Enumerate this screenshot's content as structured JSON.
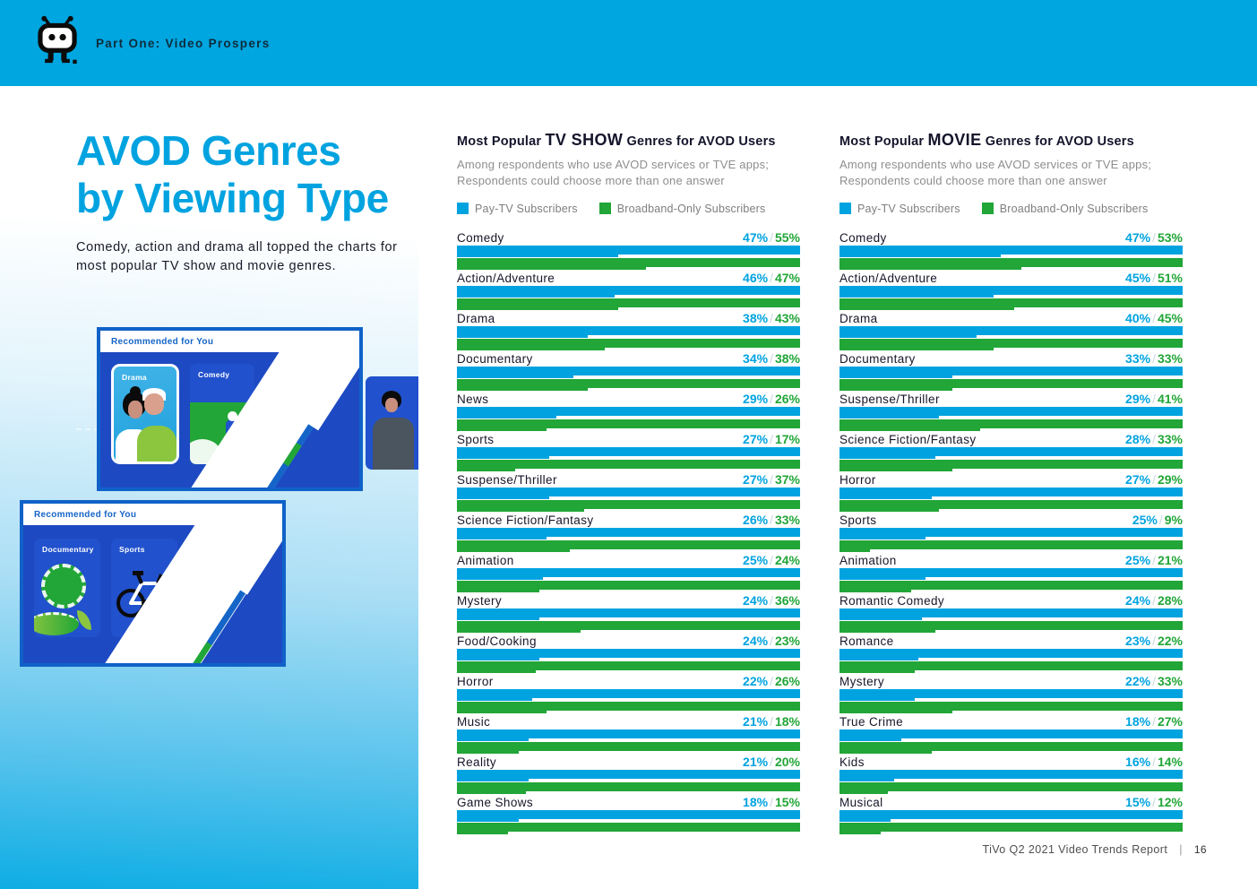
{
  "header": {
    "section_label": "Part One: Video Prospers"
  },
  "sidebar": {
    "title_lines": [
      "AVOD Genres",
      "by Viewing Type"
    ],
    "description": "Comedy, action and drama all topped the charts for most popular TV show and movie genres.",
    "panels": [
      {
        "header": "Recommended for You",
        "cards": [
          "Drama",
          "Comedy"
        ]
      },
      {
        "header": "Recommended for You",
        "cards": [
          "Documentary",
          "Sports"
        ]
      }
    ]
  },
  "footer": {
    "report_title": "TiVo Q2 2021 Video Trends Report",
    "divider": "|",
    "page_number": "16"
  },
  "colors": {
    "header_bg": "#00A6E0",
    "accent_blue": "#00A3E0",
    "accent_green": "#21A637",
    "panel_blue": "#1D4AC2"
  },
  "chart_data": [
    {
      "type": "bar",
      "orientation": "horizontal",
      "title_parts": [
        "Most Popular ",
        "TV SHOW",
        " Genres for AVOD Users"
      ],
      "subtitle": "Among respondents who use AVOD services or TVE apps; Respondents could choose more than one answer",
      "legend": [
        "Pay-TV Subscribers",
        "Broadband-Only Subscribers"
      ],
      "unit": "%",
      "xlim": [
        0,
        100
      ],
      "grid": false,
      "legend_position": "top",
      "categories": [
        "Comedy",
        "Action/Adventure",
        "Drama",
        "Documentary",
        "News",
        "Sports",
        "Suspense/Thriller",
        "Science Fiction/Fantasy",
        "Animation",
        "Mystery",
        "Food/Cooking",
        "Horror",
        "Music",
        "Reality",
        "Game Shows"
      ],
      "series": [
        {
          "name": "Pay-TV Subscribers",
          "color": "#00A3E0",
          "values": [
            47,
            46,
            38,
            34,
            29,
            27,
            27,
            26,
            25,
            24,
            24,
            22,
            21,
            21,
            18
          ]
        },
        {
          "name": "Broadband-Only Subscribers",
          "color": "#21A637",
          "values": [
            55,
            47,
            43,
            38,
            26,
            17,
            37,
            33,
            24,
            36,
            23,
            26,
            18,
            20,
            15
          ]
        }
      ]
    },
    {
      "type": "bar",
      "orientation": "horizontal",
      "title_parts": [
        "Most Popular ",
        "MOVIE",
        " Genres for AVOD Users"
      ],
      "subtitle": "Among respondents who use AVOD services or TVE apps; Respondents could choose more than one answer",
      "legend": [
        "Pay-TV Subscribers",
        "Broadband-Only Subscribers"
      ],
      "unit": "%",
      "xlim": [
        0,
        100
      ],
      "grid": false,
      "legend_position": "top",
      "categories": [
        "Comedy",
        "Action/Adventure",
        "Drama",
        "Documentary",
        "Suspense/Thriller",
        "Science Fiction/Fantasy",
        "Horror",
        "Sports",
        "Animation",
        "Romantic Comedy",
        "Romance",
        "Mystery",
        "True Crime",
        "Kids",
        "Musical"
      ],
      "series": [
        {
          "name": "Pay-TV Subscribers",
          "color": "#00A3E0",
          "values": [
            47,
            45,
            40,
            33,
            29,
            28,
            27,
            25,
            25,
            24,
            23,
            22,
            18,
            16,
            15
          ]
        },
        {
          "name": "Broadband-Only Subscribers",
          "color": "#21A637",
          "values": [
            53,
            51,
            45,
            33,
            41,
            33,
            29,
            9,
            21,
            28,
            22,
            33,
            27,
            14,
            12
          ]
        }
      ]
    }
  ]
}
